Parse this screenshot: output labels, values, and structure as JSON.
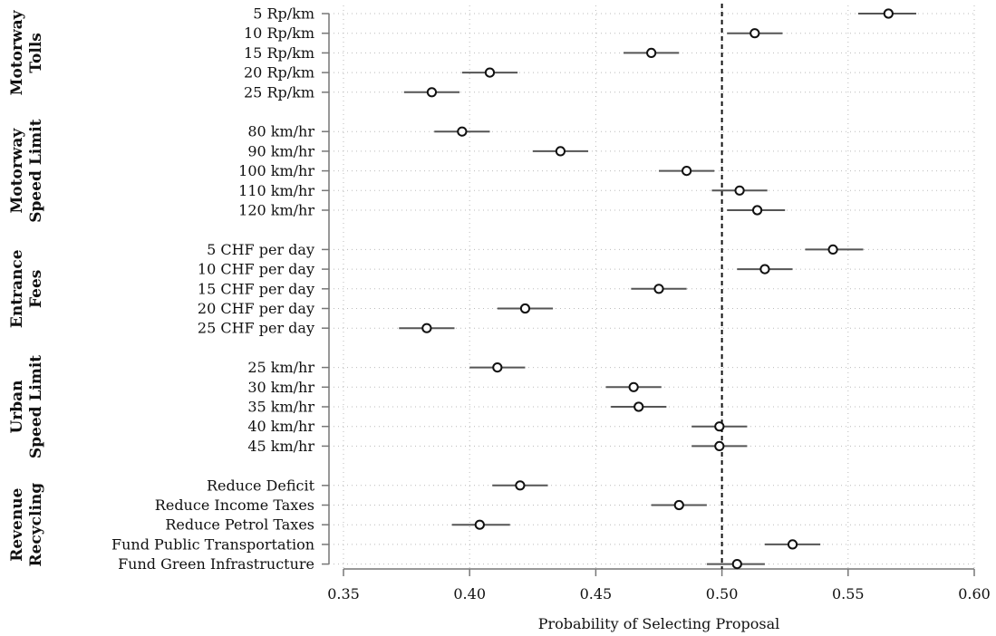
{
  "chart_data": {
    "type": "scatter",
    "xlabel": "Probability of Selecting Proposal",
    "ylabel": "",
    "xlim": [
      0.35,
      0.6
    ],
    "xticks": [
      "0.35",
      "0.40",
      "0.45",
      "0.50",
      "0.55",
      "0.60"
    ],
    "reference_line": 0.5,
    "grid": true,
    "error_bars": true,
    "groups": [
      {
        "label_lines": [
          "Motorway",
          "Tolls"
        ],
        "items": [
          {
            "label": "5 Rp/km",
            "estimate": 0.566,
            "low": 0.554,
            "high": 0.577
          },
          {
            "label": "10 Rp/km",
            "estimate": 0.513,
            "low": 0.502,
            "high": 0.524
          },
          {
            "label": "15 Rp/km",
            "estimate": 0.472,
            "low": 0.461,
            "high": 0.483
          },
          {
            "label": "20 Rp/km",
            "estimate": 0.408,
            "low": 0.397,
            "high": 0.419
          },
          {
            "label": "25 Rp/km",
            "estimate": 0.385,
            "low": 0.374,
            "high": 0.396
          }
        ]
      },
      {
        "label_lines": [
          "Motorway",
          "Speed Limit"
        ],
        "items": [
          {
            "label": "80 km/hr",
            "estimate": 0.397,
            "low": 0.386,
            "high": 0.408
          },
          {
            "label": "90 km/hr",
            "estimate": 0.436,
            "low": 0.425,
            "high": 0.447
          },
          {
            "label": "100 km/hr",
            "estimate": 0.486,
            "low": 0.475,
            "high": 0.497
          },
          {
            "label": "110 km/hr",
            "estimate": 0.507,
            "low": 0.496,
            "high": 0.518
          },
          {
            "label": "120 km/hr",
            "estimate": 0.514,
            "low": 0.502,
            "high": 0.525
          }
        ]
      },
      {
        "label_lines": [
          "Entrance",
          "Fees"
        ],
        "items": [
          {
            "label": "5 CHF per day",
            "estimate": 0.544,
            "low": 0.533,
            "high": 0.556
          },
          {
            "label": "10 CHF per day",
            "estimate": 0.517,
            "low": 0.506,
            "high": 0.528
          },
          {
            "label": "15 CHF per day",
            "estimate": 0.475,
            "low": 0.464,
            "high": 0.486
          },
          {
            "label": "20 CHF per day",
            "estimate": 0.422,
            "low": 0.411,
            "high": 0.433
          },
          {
            "label": "25 CHF per day",
            "estimate": 0.383,
            "low": 0.372,
            "high": 0.394
          }
        ]
      },
      {
        "label_lines": [
          "Urban",
          "Speed Limit"
        ],
        "items": [
          {
            "label": "25 km/hr",
            "estimate": 0.411,
            "low": 0.4,
            "high": 0.422
          },
          {
            "label": "30 km/hr",
            "estimate": 0.465,
            "low": 0.454,
            "high": 0.476
          },
          {
            "label": "35 km/hr",
            "estimate": 0.467,
            "low": 0.456,
            "high": 0.478
          },
          {
            "label": "40 km/hr",
            "estimate": 0.499,
            "low": 0.488,
            "high": 0.51
          },
          {
            "label": "45 km/hr",
            "estimate": 0.499,
            "low": 0.488,
            "high": 0.51
          }
        ]
      },
      {
        "label_lines": [
          "Revenue",
          "Recycling"
        ],
        "items": [
          {
            "label": "Reduce Deficit",
            "estimate": 0.42,
            "low": 0.409,
            "high": 0.431
          },
          {
            "label": "Reduce Income Taxes",
            "estimate": 0.483,
            "low": 0.472,
            "high": 0.494
          },
          {
            "label": "Reduce Petrol Taxes",
            "estimate": 0.404,
            "low": 0.393,
            "high": 0.416
          },
          {
            "label": "Fund Public Transportation",
            "estimate": 0.528,
            "low": 0.517,
            "high": 0.539
          },
          {
            "label": "Fund Green Infrastructure",
            "estimate": 0.506,
            "low": 0.494,
            "high": 0.517
          }
        ]
      }
    ]
  }
}
